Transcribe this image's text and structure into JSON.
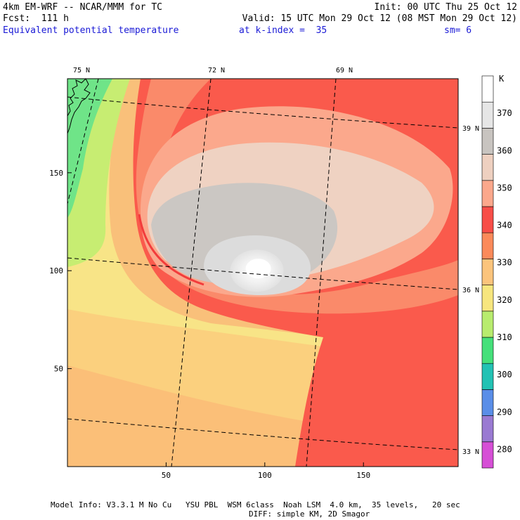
{
  "header": {
    "model": "4km EM-WRF -- NCAR/MMM for TC",
    "init": "Init: 00 UTC Thu 25 Oct 12",
    "fcst": "Fcst:  111 h",
    "valid": "Valid: 15 UTC Mon 29 Oct 12 (08 MST Mon 29 Oct 12)",
    "field": "Equivalent potential temperature",
    "level": "at k-index =  35",
    "smooth": "sm= 6"
  },
  "footer": {
    "line1": "Model Info: V3.3.1 M No Cu   YSU PBL  WSM 6class  Noah LSM  4.0 km,  35 levels,   20 sec",
    "line2": "DIFF: simple KM, 2D Smagor"
  },
  "chart_data": {
    "type": "heatmap",
    "title": "Equivalent potential temperature",
    "xlabel": "",
    "ylabel": "",
    "xlim": [
      0,
      198
    ],
    "ylim": [
      0,
      198
    ],
    "x_ticks": [
      50,
      100,
      150
    ],
    "y_ticks": [
      50,
      100,
      150
    ],
    "lon_labels": [
      "75 N",
      "72 N",
      "69 N"
    ],
    "lat_labels": [
      "39 N",
      "36 N",
      "33 N"
    ],
    "colorbar": {
      "unit": "K",
      "levels": [
        280,
        290,
        300,
        310,
        320,
        330,
        340,
        350,
        360,
        370
      ],
      "colors": [
        "#d64fd6",
        "#9a7ad2",
        "#5a8ee8",
        "#22c2b4",
        "#45e07a",
        "#b8ec6e",
        "#f7e67e",
        "#fbc47c",
        "#fb8a5a",
        "#f84e48",
        "#fba88c",
        "#eed0c0",
        "#c8c4c0",
        "#e6e6e6",
        "#ffffff"
      ]
    },
    "features": {
      "storm_center": [
        96,
        100
      ],
      "storm_center_theta_e": 365
    }
  }
}
